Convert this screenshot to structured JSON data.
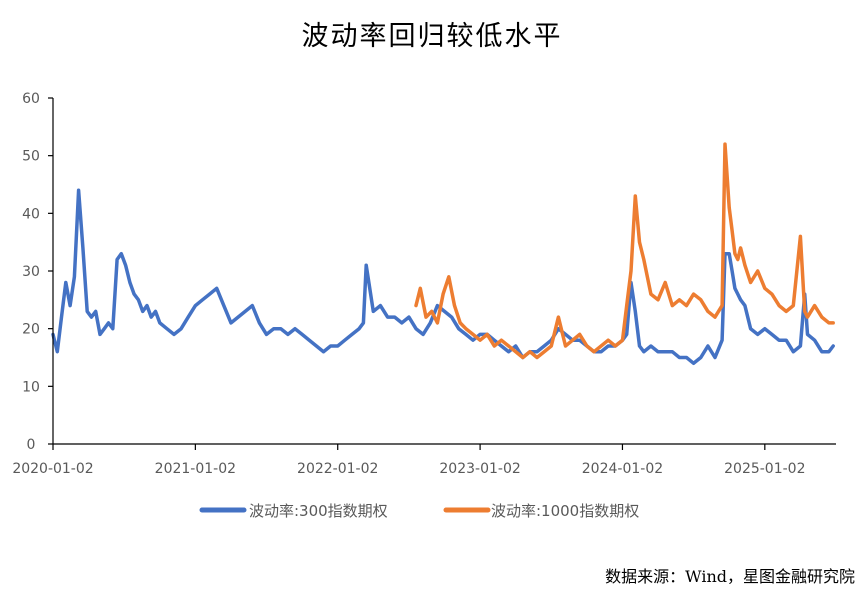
{
  "chart_data": {
    "type": "line",
    "title": "波动率回归较低水平",
    "xlabel": "",
    "ylabel": "",
    "ylim": [
      0,
      60
    ],
    "y_ticks": [
      0,
      10,
      20,
      30,
      40,
      50,
      60
    ],
    "x_range": [
      2020.0,
      2025.5
    ],
    "x_ticks": [
      {
        "value": 2020.0,
        "label": "2020-01-02"
      },
      {
        "value": 2021.0,
        "label": "2021-01-02"
      },
      {
        "value": 2022.0,
        "label": "2022-01-02"
      },
      {
        "value": 2023.0,
        "label": "2023-01-02"
      },
      {
        "value": 2024.0,
        "label": "2024-01-02"
      },
      {
        "value": 2025.0,
        "label": "2025-01-02"
      }
    ],
    "legend_position": "bottom",
    "series": [
      {
        "name": "波动率:300指数期权",
        "color": "#4472C4",
        "x": [
          2020.0,
          2020.03,
          2020.06,
          2020.09,
          2020.12,
          2020.15,
          2020.18,
          2020.21,
          2020.24,
          2020.27,
          2020.3,
          2020.33,
          2020.36,
          2020.39,
          2020.42,
          2020.45,
          2020.48,
          2020.51,
          2020.54,
          2020.57,
          2020.6,
          2020.63,
          2020.66,
          2020.69,
          2020.72,
          2020.75,
          2020.8,
          2020.85,
          2020.9,
          2020.95,
          2021.0,
          2021.05,
          2021.1,
          2021.15,
          2021.2,
          2021.25,
          2021.3,
          2021.35,
          2021.4,
          2021.45,
          2021.5,
          2021.55,
          2021.6,
          2021.65,
          2021.7,
          2021.75,
          2021.8,
          2021.85,
          2021.9,
          2021.95,
          2022.0,
          2022.05,
          2022.1,
          2022.15,
          2022.18,
          2022.2,
          2022.25,
          2022.3,
          2022.35,
          2022.4,
          2022.45,
          2022.5,
          2022.55,
          2022.6,
          2022.65,
          2022.7,
          2022.75,
          2022.8,
          2022.85,
          2022.9,
          2022.95,
          2023.0,
          2023.05,
          2023.1,
          2023.15,
          2023.2,
          2023.25,
          2023.3,
          2023.35,
          2023.4,
          2023.45,
          2023.5,
          2023.55,
          2023.6,
          2023.65,
          2023.7,
          2023.75,
          2023.8,
          2023.85,
          2023.9,
          2023.95,
          2024.0,
          2024.03,
          2024.06,
          2024.09,
          2024.12,
          2024.15,
          2024.2,
          2024.25,
          2024.3,
          2024.35,
          2024.4,
          2024.45,
          2024.5,
          2024.55,
          2024.6,
          2024.65,
          2024.7,
          2024.72,
          2024.75,
          2024.77,
          2024.79,
          2024.81,
          2024.83,
          2024.86,
          2024.9,
          2024.95,
          2025.0,
          2025.05,
          2025.1,
          2025.15,
          2025.2,
          2025.25,
          2025.28,
          2025.3,
          2025.35,
          2025.4,
          2025.45,
          2025.48
        ],
        "values": [
          19,
          16,
          22,
          28,
          24,
          29,
          44,
          34,
          23,
          22,
          23,
          19,
          20,
          21,
          20,
          32,
          33,
          31,
          28,
          26,
          25,
          23,
          24,
          22,
          23,
          21,
          20,
          19,
          20,
          22,
          24,
          25,
          26,
          27,
          24,
          21,
          22,
          23,
          24,
          21,
          19,
          20,
          20,
          19,
          20,
          19,
          18,
          17,
          16,
          17,
          17,
          18,
          19,
          20,
          21,
          31,
          23,
          24,
          22,
          22,
          21,
          22,
          20,
          19,
          21,
          24,
          23,
          22,
          20,
          19,
          18,
          19,
          19,
          18,
          17,
          16,
          17,
          15,
          16,
          16,
          17,
          18,
          20,
          19,
          18,
          18,
          17,
          16,
          16,
          17,
          17,
          18,
          19,
          28,
          23,
          17,
          16,
          17,
          16,
          16,
          16,
          15,
          15,
          14,
          15,
          17,
          15,
          18,
          33,
          33,
          30,
          27,
          26,
          25,
          24,
          20,
          19,
          20,
          19,
          18,
          18,
          16,
          17,
          26,
          19,
          18,
          16,
          16,
          17
        ]
      },
      {
        "name": "波动率:1000指数期权",
        "color": "#ED7D31",
        "x": [
          2022.55,
          2022.58,
          2022.62,
          2022.66,
          2022.7,
          2022.74,
          2022.78,
          2022.82,
          2022.86,
          2022.9,
          2022.95,
          2023.0,
          2023.05,
          2023.1,
          2023.15,
          2023.2,
          2023.25,
          2023.3,
          2023.35,
          2023.4,
          2023.45,
          2023.5,
          2023.55,
          2023.6,
          2023.65,
          2023.7,
          2023.75,
          2023.8,
          2023.85,
          2023.9,
          2023.95,
          2024.0,
          2024.03,
          2024.06,
          2024.09,
          2024.12,
          2024.15,
          2024.2,
          2024.25,
          2024.3,
          2024.35,
          2024.4,
          2024.45,
          2024.5,
          2024.55,
          2024.6,
          2024.65,
          2024.7,
          2024.72,
          2024.75,
          2024.77,
          2024.79,
          2024.81,
          2024.83,
          2024.86,
          2024.9,
          2024.95,
          2025.0,
          2025.05,
          2025.1,
          2025.15,
          2025.2,
          2025.25,
          2025.28,
          2025.3,
          2025.35,
          2025.4,
          2025.45,
          2025.48
        ],
        "values": [
          24,
          27,
          22,
          23,
          21,
          26,
          29,
          24,
          21,
          20,
          19,
          18,
          19,
          17,
          18,
          17,
          16,
          15,
          16,
          15,
          16,
          17,
          22,
          17,
          18,
          19,
          17,
          16,
          17,
          18,
          17,
          18,
          24,
          30,
          43,
          35,
          32,
          26,
          25,
          28,
          24,
          25,
          24,
          26,
          25,
          23,
          22,
          24,
          52,
          41,
          37,
          33,
          32,
          34,
          31,
          28,
          30,
          27,
          26,
          24,
          23,
          24,
          36,
          23,
          22,
          24,
          22,
          21,
          21
        ]
      }
    ]
  },
  "legend": [
    {
      "label": "波动率:300指数期权"
    },
    {
      "label": "波动率:1000指数期权"
    }
  ],
  "source": "数据来源：Wind，星图金融研究院"
}
